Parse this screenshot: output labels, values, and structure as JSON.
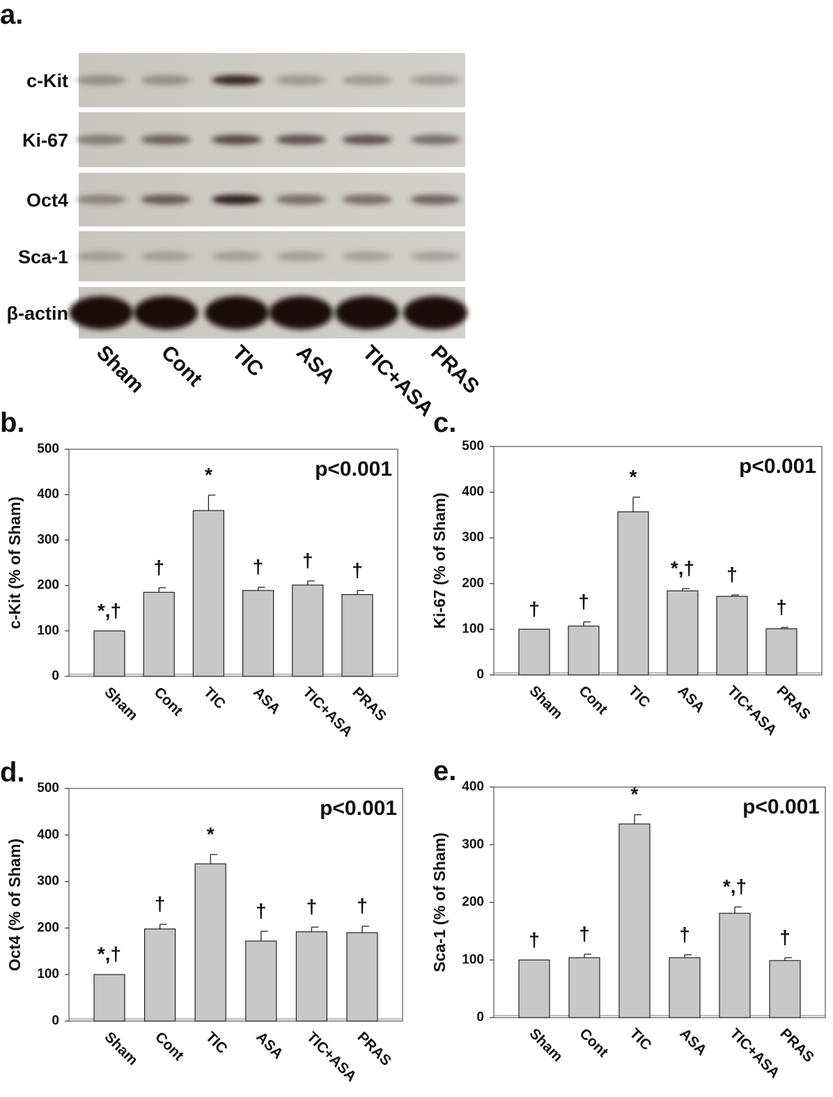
{
  "blot": {
    "panel_label": "a.",
    "rows": [
      "c-Kit",
      "Ki-67",
      "Oct4",
      "Sca-1",
      "β-actin"
    ],
    "lanes": [
      "Sham",
      "Cont",
      "TIC",
      "ASA",
      "TIC+ASA",
      "PRAS"
    ]
  },
  "chart_data": [
    {
      "type": "bar",
      "panel_label": "b.",
      "y_label": "c-Kit (% of Sham)",
      "annotation": "p<0.001",
      "categories": [
        "Sham",
        "Cont",
        "TIC",
        "ASA",
        "TIC+ASA",
        "PRAS"
      ],
      "values": [
        100,
        185,
        365,
        189,
        201,
        180
      ],
      "errors": [
        0,
        10,
        34,
        7,
        9,
        9
      ],
      "markers": [
        "*,†",
        "†",
        "*",
        "†",
        "†",
        "†"
      ],
      "ylim": [
        0,
        500
      ],
      "yticks": [
        0,
        100,
        200,
        300,
        400,
        500
      ],
      "color": "#c8c8c8"
    },
    {
      "type": "bar",
      "panel_label": "c.",
      "y_label": "Ki-67 (% of Sham)",
      "annotation": "p<0.001",
      "categories": [
        "Sham",
        "Cont",
        "TIC",
        "ASA",
        "TIC+ASA",
        "PRAS"
      ],
      "values": [
        100,
        107,
        357,
        184,
        172,
        101
      ],
      "errors": [
        0,
        9,
        32,
        5,
        3,
        3
      ],
      "markers": [
        "†",
        "†",
        "*",
        "*,†",
        "†",
        "†"
      ],
      "ylim": [
        0,
        500
      ],
      "yticks": [
        0,
        100,
        200,
        300,
        400,
        500
      ],
      "color": "#c8c8c8"
    },
    {
      "type": "bar",
      "panel_label": "d.",
      "y_label": "Oct4 (% of Sham)",
      "annotation": "p<0.001",
      "categories": [
        "Sham",
        "Cont",
        "TIC",
        "ASA",
        "TIC+ASA",
        "PRAS"
      ],
      "values": [
        100,
        198,
        338,
        172,
        192,
        190
      ],
      "errors": [
        0,
        10,
        20,
        21,
        10,
        14
      ],
      "markers": [
        "*,†",
        "†",
        "*",
        "†",
        "†",
        "†"
      ],
      "ylim": [
        0,
        500
      ],
      "yticks": [
        0,
        100,
        200,
        300,
        400,
        500
      ],
      "color": "#c8c8c8"
    },
    {
      "type": "bar",
      "panel_label": "e.",
      "y_label": "Sca-1 (% of Sham)",
      "annotation": "p<0.001",
      "categories": [
        "Sham",
        "Cont",
        "TIC",
        "ASA",
        "TIC+ASA",
        "PRAS"
      ],
      "values": [
        100,
        104,
        336,
        104,
        181,
        99
      ],
      "errors": [
        0,
        6,
        16,
        5,
        11,
        5
      ],
      "markers": [
        "†",
        "†",
        "*",
        "†",
        "*,†",
        "†"
      ],
      "ylim": [
        0,
        400
      ],
      "yticks": [
        0,
        100,
        200,
        300,
        400
      ],
      "color": "#c8c8c8"
    }
  ]
}
